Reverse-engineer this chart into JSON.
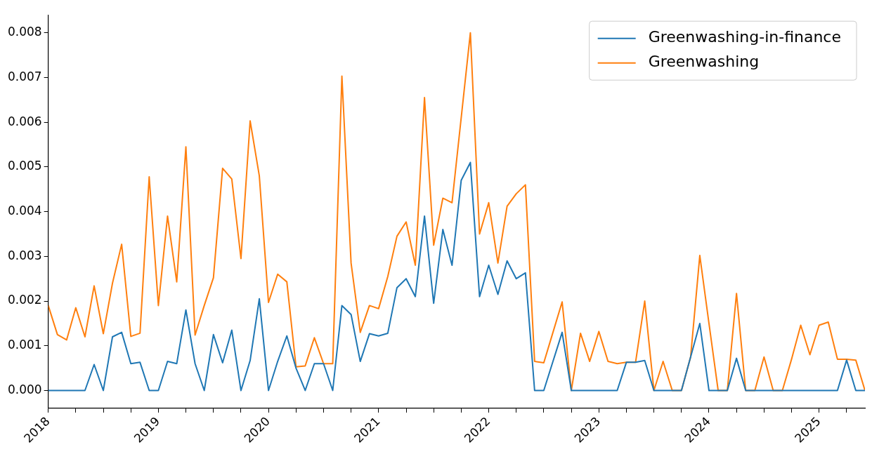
{
  "chart_data": {
    "type": "line",
    "x": [
      "2018-01",
      "2018-02",
      "2018-03",
      "2018-04",
      "2018-05",
      "2018-06",
      "2018-07",
      "2018-08",
      "2018-09",
      "2018-10",
      "2018-11",
      "2018-12",
      "2019-01",
      "2019-02",
      "2019-03",
      "2019-04",
      "2019-05",
      "2019-06",
      "2019-07",
      "2019-08",
      "2019-09",
      "2019-10",
      "2019-11",
      "2019-12",
      "2020-01",
      "2020-02",
      "2020-03",
      "2020-04",
      "2020-05",
      "2020-06",
      "2020-07",
      "2020-08",
      "2020-09",
      "2020-10",
      "2020-11",
      "2020-12",
      "2021-01",
      "2021-02",
      "2021-03",
      "2021-04",
      "2021-05",
      "2021-06",
      "2021-07",
      "2021-08",
      "2021-09",
      "2021-10",
      "2021-11",
      "2021-12",
      "2022-01",
      "2022-02",
      "2022-03",
      "2022-04",
      "2022-05",
      "2022-06",
      "2022-07",
      "2022-08",
      "2022-09",
      "2022-10",
      "2022-11",
      "2022-12",
      "2023-01",
      "2023-02",
      "2023-03",
      "2023-04",
      "2023-05",
      "2023-06",
      "2023-07",
      "2023-08",
      "2023-09",
      "2023-10",
      "2023-11",
      "2023-12",
      "2024-01",
      "2024-02",
      "2024-03",
      "2024-04",
      "2024-05",
      "2024-06",
      "2024-07",
      "2024-08",
      "2024-09",
      "2024-10",
      "2024-11",
      "2024-12",
      "2025-01",
      "2025-02",
      "2025-03",
      "2025-04",
      "2025-05",
      "2025-06"
    ],
    "series": [
      {
        "name": "Greenwashing-in-finance",
        "color": "#1f77b4",
        "values": [
          0,
          0,
          0,
          0,
          0,
          0.00058,
          0,
          0.0012,
          0.0013,
          0.0006,
          0.00063,
          0,
          0,
          0.00065,
          0.0006,
          0.0018,
          0.0006,
          0,
          0.00125,
          0.00062,
          0.00135,
          0,
          0.00067,
          0.00205,
          0,
          0.00065,
          0.00122,
          0.0005,
          0,
          0.0006,
          0.0006,
          0,
          0.0019,
          0.0017,
          0.00065,
          0.00127,
          0.00122,
          0.00128,
          0.0023,
          0.0025,
          0.0021,
          0.0039,
          0.00195,
          0.0036,
          0.0028,
          0.0047,
          0.0051,
          0.0021,
          0.0028,
          0.00215,
          0.0029,
          0.0025,
          0.00263,
          0,
          0,
          0.00065,
          0.0013,
          0,
          0,
          0,
          0,
          0,
          0,
          0.00063,
          0.00063,
          0.00067,
          0,
          0,
          0,
          0,
          0.00075,
          0.0015,
          0,
          0,
          0,
          0.00072,
          0,
          0,
          0,
          0,
          0,
          0,
          0,
          0,
          0,
          0,
          0,
          0.00068,
          0,
          0
        ]
      },
      {
        "name": "Greenwashing",
        "color": "#ff7f0e",
        "values": [
          0.0019,
          0.00125,
          0.00113,
          0.00185,
          0.0012,
          0.00234,
          0.00127,
          0.0024,
          0.00327,
          0.00121,
          0.00128,
          0.00478,
          0.0019,
          0.0039,
          0.00243,
          0.00545,
          0.00124,
          0.0019,
          0.00252,
          0.00497,
          0.00473,
          0.00295,
          0.00603,
          0.0048,
          0.00197,
          0.0026,
          0.00243,
          0.00053,
          0.00055,
          0.00118,
          0.0006,
          0.0006,
          0.00703,
          0.00285,
          0.0013,
          0.0019,
          0.00183,
          0.00255,
          0.00345,
          0.00377,
          0.0028,
          0.00655,
          0.00325,
          0.0043,
          0.0042,
          0.0061,
          0.008,
          0.0035,
          0.0042,
          0.00285,
          0.00412,
          0.0044,
          0.0046,
          0.00065,
          0.00062,
          0.0013,
          0.00198,
          0,
          0.00128,
          0.00065,
          0.00132,
          0.00065,
          0.0006,
          0.00063,
          0.00063,
          0.002,
          0,
          0.00065,
          0,
          0,
          0.00075,
          0.00302,
          0.0015,
          0,
          0,
          0.00217,
          0,
          0,
          0.00075,
          0,
          0,
          0.0007,
          0.00146,
          0.0008,
          0.00146,
          0.00153,
          0.0007,
          0.0007,
          0.00068,
          0
        ]
      }
    ],
    "xlim": [
      "2018-01",
      "2025-06"
    ],
    "xticks": [
      "2018",
      {
        "value": "2018-04",
        "label": null
      },
      {
        "value": "2018-07",
        "label": null
      },
      {
        "value": "2018-10",
        "label": null
      },
      "2019",
      {
        "value": "2019-04",
        "label": null
      },
      {
        "value": "2019-07",
        "label": null
      },
      {
        "value": "2019-10",
        "label": null
      },
      "2020",
      {
        "value": "2020-04",
        "label": null
      },
      {
        "value": "2020-07",
        "label": null
      },
      {
        "value": "2020-10",
        "label": null
      },
      "2021",
      {
        "value": "2021-04",
        "label": null
      },
      {
        "value": "2021-07",
        "label": null
      },
      {
        "value": "2021-10",
        "label": null
      },
      "2022",
      {
        "value": "2022-04",
        "label": null
      },
      {
        "value": "2022-07",
        "label": null
      },
      {
        "value": "2022-10",
        "label": null
      },
      "2023",
      {
        "value": "2023-04",
        "label": null
      },
      {
        "value": "2023-07",
        "label": null
      },
      {
        "value": "2023-10",
        "label": null
      },
      "2024",
      {
        "value": "2024-04",
        "label": null
      },
      {
        "value": "2024-07",
        "label": null
      },
      {
        "value": "2024-10",
        "label": null
      },
      "2025",
      {
        "value": "2025-04",
        "label": null
      }
    ],
    "ylim": [
      -0.0004,
      0.0084
    ],
    "yticks": [
      {
        "value": 0,
        "label": "0.000"
      },
      {
        "value": 0.001,
        "label": "0.001"
      },
      {
        "value": 0.002,
        "label": "0.002"
      },
      {
        "value": 0.003,
        "label": "0.003"
      },
      {
        "value": 0.004,
        "label": "0.004"
      },
      {
        "value": 0.005,
        "label": "0.005"
      },
      {
        "value": 0.006,
        "label": "0.006"
      },
      {
        "value": 0.007,
        "label": "0.007"
      },
      {
        "value": 0.008,
        "label": "0.008"
      }
    ],
    "grid": false,
    "legend": "top right",
    "marker": "none",
    "line_style": "solid"
  }
}
